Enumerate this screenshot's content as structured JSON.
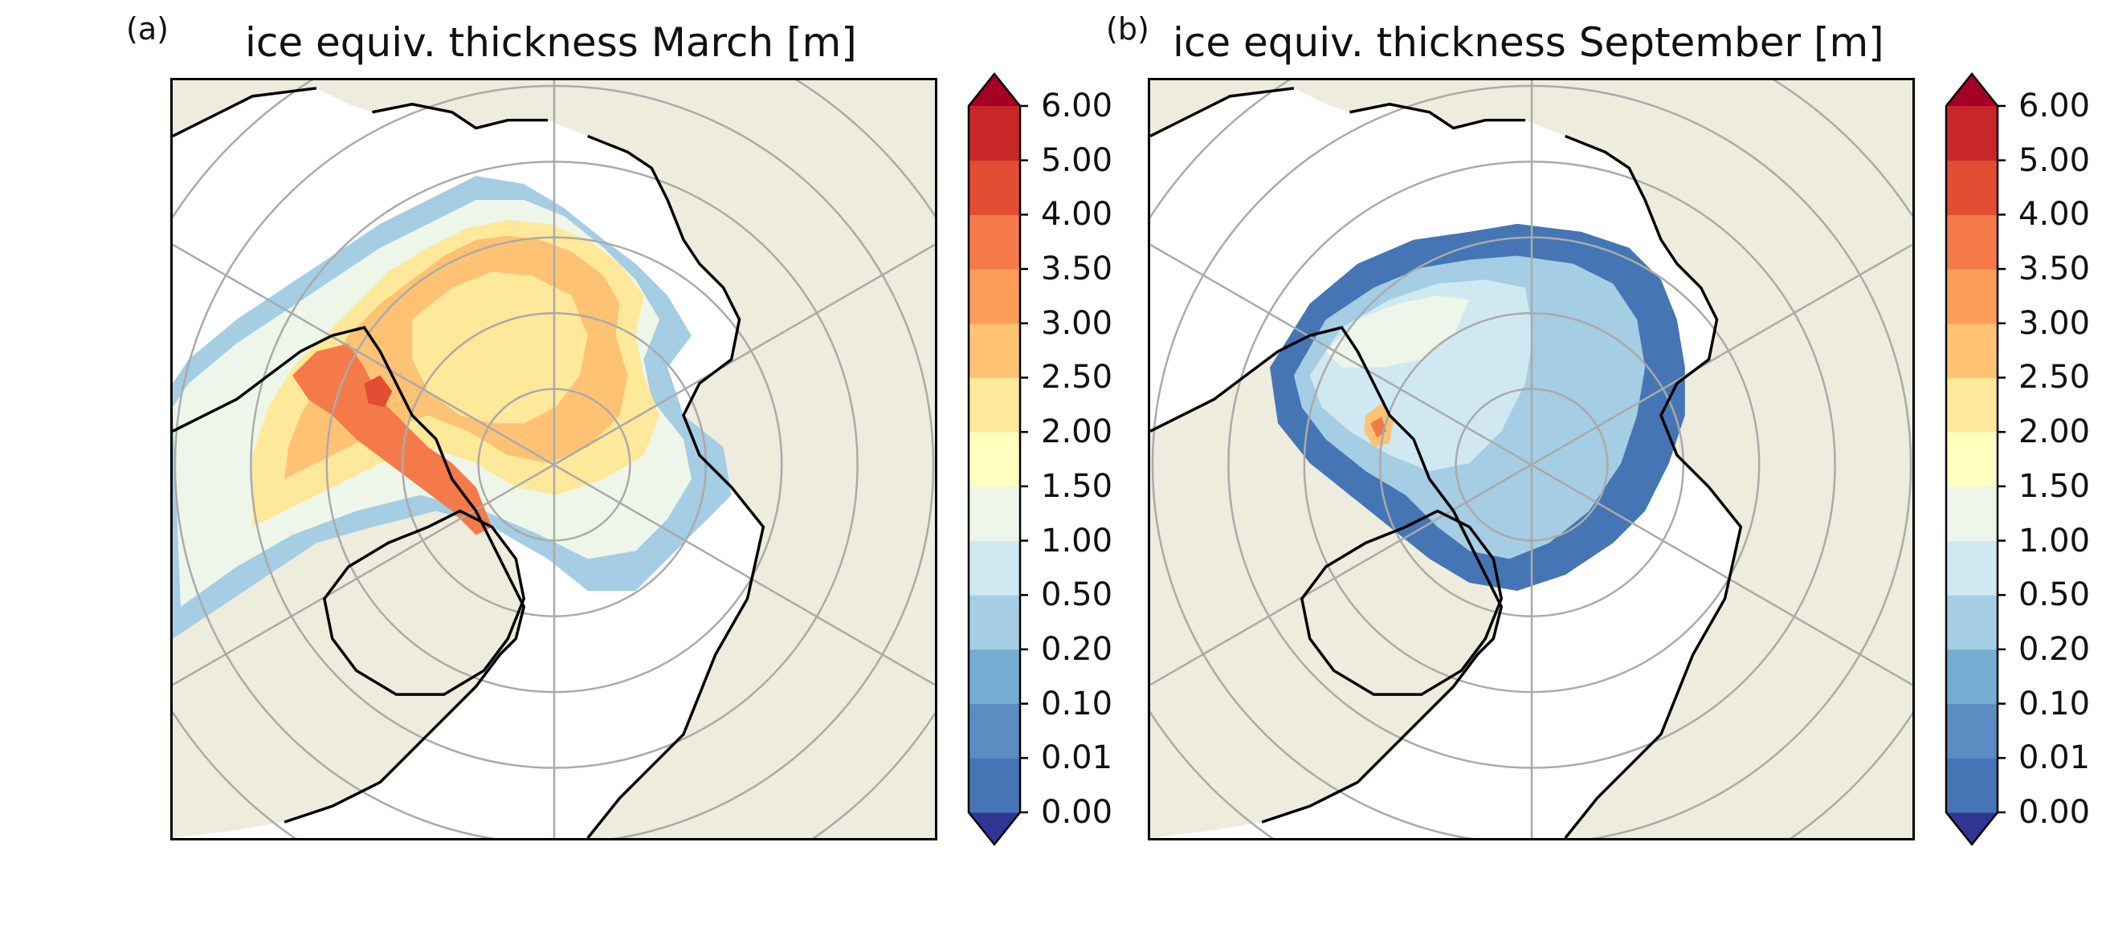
{
  "panels": [
    {
      "letter": "(a)",
      "title": "ice equiv. thickness March [m]",
      "month": "March",
      "dominant_thickness_m": "2.00-3.50"
    },
    {
      "letter": "(b)",
      "title": "ice equiv. thickness September [m]",
      "month": "September",
      "dominant_thickness_m": "0.20-1.00"
    }
  ],
  "colorbar": {
    "levels": [
      "0.00",
      "0.01",
      "0.10",
      "0.20",
      "0.50",
      "1.00",
      "1.50",
      "2.00",
      "2.50",
      "3.00",
      "3.50",
      "4.00",
      "5.00",
      "6.00"
    ],
    "colors": [
      "#313695",
      "#4575b4",
      "#5b8cc2",
      "#74add1",
      "#a5cde4",
      "#d0e8f2",
      "#eef6ea",
      "#ffffbf",
      "#fee899",
      "#fdc274",
      "#fb9d59",
      "#f47a4a",
      "#e34d34",
      "#c9262a",
      "#a50026"
    ],
    "extend": "both"
  },
  "map_colors": {
    "land": "#eeecdc",
    "ocean": "#ffffff",
    "coastline": "#000000",
    "graticule": "#aaaaaa"
  }
}
